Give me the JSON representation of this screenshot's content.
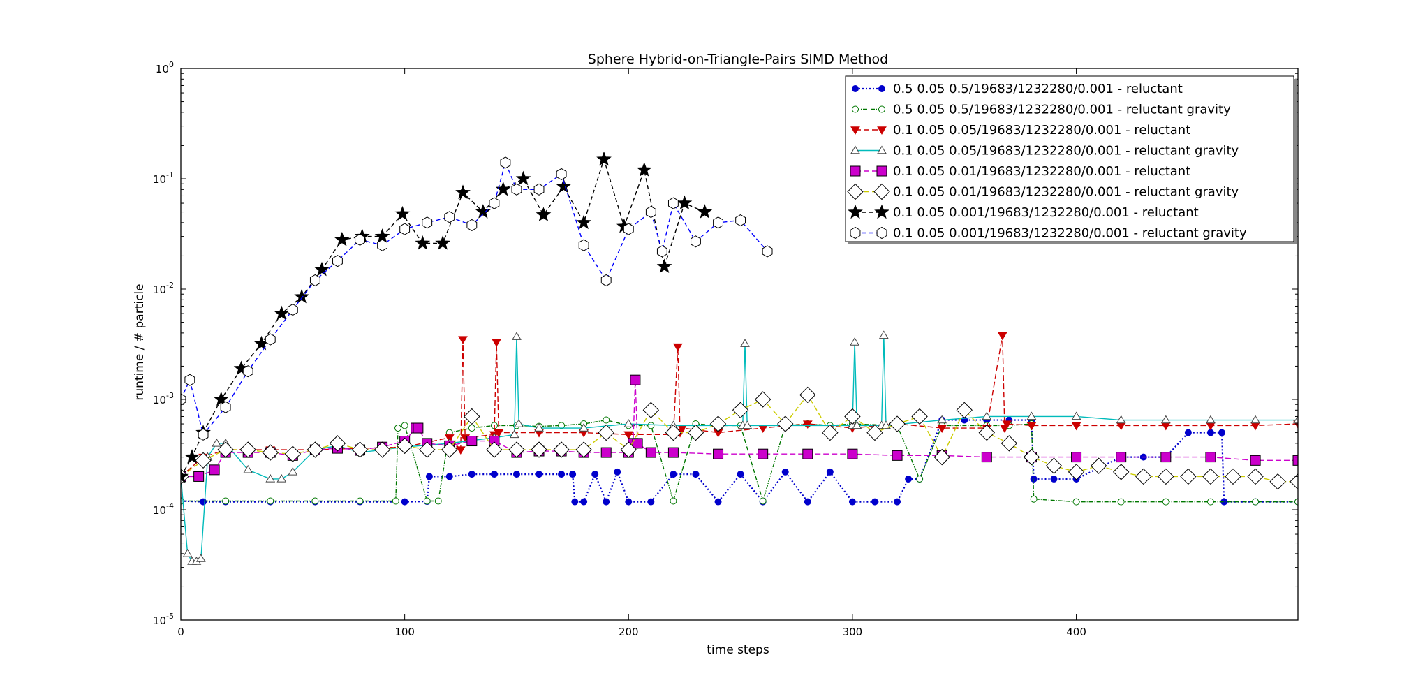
{
  "chart_data": {
    "type": "line",
    "title": "Sphere Hybrid-on-Triangle-Pairs SIMD Method",
    "xlabel": "time steps",
    "ylabel": "runtime / # particle",
    "xlim": [
      0,
      499
    ],
    "ylim": [
      1e-05,
      1
    ],
    "yscale": "log",
    "grid": false,
    "legend_position": "top-right",
    "x_ticks": [
      "0",
      "100",
      "200",
      "300",
      "400"
    ],
    "y_ticks": [
      {
        "base": "10",
        "exp": "0"
      },
      {
        "base": "10",
        "exp": "-1"
      },
      {
        "base": "10",
        "exp": "-2"
      },
      {
        "base": "10",
        "exp": "-3"
      },
      {
        "base": "10",
        "exp": "-4"
      },
      {
        "base": "10",
        "exp": "-5"
      }
    ],
    "series": [
      {
        "name": "0.5 0.05 0.5/19683/1232280/0.001 - reluctant",
        "color": "#0000cc",
        "dash": "2,3",
        "marker": "circle",
        "markerFill": "#0000cc",
        "x": [
          0,
          10,
          20,
          40,
          60,
          80,
          100,
          110,
          111,
          120,
          130,
          140,
          150,
          160,
          170,
          175,
          176,
          180,
          185,
          190,
          195,
          200,
          210,
          220,
          230,
          240,
          250,
          260,
          270,
          280,
          290,
          300,
          310,
          320,
          325,
          330,
          340,
          350,
          360,
          370,
          380,
          381,
          390,
          400,
          420,
          430,
          440,
          450,
          460,
          465,
          466,
          480,
          499
        ],
        "y": [
          0.00012,
          0.000118,
          0.000118,
          0.000118,
          0.000118,
          0.000118,
          0.000118,
          0.000119,
          0.0002,
          0.0002,
          0.00021,
          0.00021,
          0.00021,
          0.00021,
          0.00021,
          0.00021,
          0.000118,
          0.000118,
          0.00021,
          0.000118,
          0.00022,
          0.000118,
          0.000118,
          0.00021,
          0.00021,
          0.000118,
          0.00021,
          0.000118,
          0.00022,
          0.000118,
          0.00022,
          0.000118,
          0.000118,
          0.000118,
          0.00019,
          0.00019,
          0.00065,
          0.00065,
          0.00065,
          0.00065,
          0.00065,
          0.00019,
          0.00019,
          0.00019,
          0.0003,
          0.0003,
          0.0003,
          0.0005,
          0.0005,
          0.0005,
          0.000118,
          0.000118,
          0.000118
        ]
      },
      {
        "name": "0.5 0.05 0.5/19683/1232280/0.001 - reluctant gravity",
        "color": "#007700",
        "dash": "6,2,1,2",
        "marker": "circle",
        "markerFill": "#ffffff",
        "x": [
          0,
          20,
          40,
          60,
          80,
          96,
          97,
          100,
          110,
          115,
          120,
          130,
          140,
          150,
          160,
          170,
          180,
          190,
          200,
          210,
          220,
          230,
          240,
          250,
          260,
          270,
          280,
          290,
          300,
          320,
          330,
          340,
          360,
          370,
          380,
          381,
          400,
          420,
          440,
          460,
          480,
          499
        ],
        "y": [
          0.00012,
          0.00012,
          0.00012,
          0.00012,
          0.00012,
          0.00012,
          0.00055,
          0.00058,
          0.00012,
          0.00012,
          0.0005,
          0.00055,
          0.00058,
          0.00058,
          0.00057,
          0.00058,
          0.0006,
          0.00065,
          0.00058,
          0.00058,
          0.00012,
          0.0006,
          0.00058,
          0.00058,
          0.00012,
          0.00058,
          0.0006,
          0.00058,
          0.0006,
          0.00058,
          0.00019,
          0.00058,
          0.00058,
          0.00058,
          0.0006,
          0.000125,
          0.000118,
          0.000118,
          0.000118,
          0.000118,
          0.000118,
          0.000118
        ]
      },
      {
        "name": "0.1 0.05 0.05/19683/1232280/0.001 - reluctant",
        "color": "#cc0000",
        "dash": "8,4",
        "marker": "triangle-down",
        "markerFill": "#cc0000",
        "x": [
          0,
          10,
          20,
          40,
          60,
          80,
          100,
          120,
          125,
          126,
          127,
          140,
          141,
          142,
          160,
          180,
          200,
          220,
          222,
          223,
          224,
          240,
          260,
          280,
          300,
          320,
          340,
          360,
          367,
          368,
          369,
          380,
          400,
          420,
          440,
          460,
          480,
          499
        ],
        "y": [
          0.0002,
          0.0003,
          0.00035,
          0.00035,
          0.00035,
          0.00036,
          0.00037,
          0.00045,
          0.00035,
          0.0035,
          0.00045,
          0.00048,
          0.0033,
          0.0005,
          0.0005,
          0.0005,
          0.00048,
          0.00048,
          0.003,
          0.0005,
          0.00055,
          0.0005,
          0.00055,
          0.0006,
          0.00055,
          0.0006,
          0.00055,
          0.00055,
          0.0038,
          0.00055,
          0.0006,
          0.00058,
          0.00058,
          0.00058,
          0.00058,
          0.00058,
          0.00058,
          0.0006
        ]
      },
      {
        "name": "0.1 0.05 0.05/19683/1232280/0.001 - reluctant gravity",
        "color": "#00bbbb",
        "dash": "",
        "marker": "triangle-up",
        "markerFill": "#ffffff",
        "x": [
          0,
          3,
          5,
          7,
          9,
          12,
          16,
          20,
          30,
          40,
          45,
          50,
          60,
          70,
          80,
          100,
          120,
          140,
          149,
          150,
          151,
          160,
          180,
          200,
          220,
          240,
          251,
          252,
          253,
          270,
          300,
          301,
          302,
          313,
          314,
          315,
          340,
          360,
          380,
          400,
          420,
          440,
          460,
          480,
          499
        ],
        "y": [
          0.0002,
          4e-05,
          3.4e-05,
          3.4e-05,
          3.6e-05,
          0.0003,
          0.0004,
          0.0004,
          0.00023,
          0.00019,
          0.00019,
          0.00022,
          0.00035,
          0.00038,
          0.00033,
          0.00037,
          0.0004,
          0.00045,
          0.00048,
          0.0037,
          0.0006,
          0.00055,
          0.00055,
          0.0006,
          0.00058,
          0.00058,
          0.00058,
          0.0032,
          0.00058,
          0.00058,
          0.00058,
          0.0033,
          0.00058,
          0.00058,
          0.0038,
          0.00058,
          0.00065,
          0.0007,
          0.0007,
          0.0007,
          0.00065,
          0.00065,
          0.00065,
          0.00065,
          0.00065
        ]
      },
      {
        "name": "0.1 0.05 0.01/19683/1232280/0.001 - reluctant",
        "color": "#cc00cc",
        "dash": "8,4",
        "marker": "square",
        "markerFill": "#cc00cc",
        "x": [
          0,
          8,
          15,
          20,
          30,
          40,
          50,
          60,
          70,
          80,
          90,
          100,
          105,
          106,
          110,
          120,
          130,
          140,
          150,
          160,
          170,
          180,
          190,
          200,
          202,
          203,
          204,
          210,
          220,
          240,
          260,
          280,
          300,
          320,
          340,
          360,
          380,
          400,
          420,
          440,
          460,
          480,
          499
        ],
        "y": [
          0.0002,
          0.0002,
          0.00023,
          0.00033,
          0.00033,
          0.00033,
          0.00031,
          0.00035,
          0.00036,
          0.00035,
          0.00037,
          0.00042,
          0.00055,
          0.00055,
          0.0004,
          0.00038,
          0.00042,
          0.00042,
          0.00033,
          0.00034,
          0.00034,
          0.00033,
          0.00033,
          0.00033,
          0.0004,
          0.0015,
          0.0004,
          0.00033,
          0.00033,
          0.00032,
          0.00032,
          0.00032,
          0.00032,
          0.00031,
          0.00031,
          0.0003,
          0.0003,
          0.0003,
          0.0003,
          0.0003,
          0.0003,
          0.00028,
          0.00028
        ]
      },
      {
        "name": "0.1 0.05 0.01/19683/1232280/0.001 - reluctant gravity",
        "color": "#cccc00",
        "dash": "8,4",
        "marker": "diamond",
        "markerFill": "#ffffff",
        "x": [
          0,
          10,
          20,
          30,
          40,
          50,
          60,
          70,
          80,
          90,
          100,
          110,
          120,
          130,
          140,
          150,
          160,
          170,
          180,
          190,
          200,
          210,
          220,
          230,
          240,
          250,
          260,
          270,
          280,
          290,
          300,
          310,
          320,
          330,
          340,
          350,
          360,
          370,
          380,
          390,
          400,
          410,
          420,
          430,
          440,
          450,
          460,
          470,
          480,
          490,
          499
        ],
        "y": [
          0.0002,
          0.00028,
          0.00035,
          0.00035,
          0.00033,
          0.00032,
          0.00035,
          0.0004,
          0.00035,
          0.00035,
          0.00038,
          0.00035,
          0.00035,
          0.0007,
          0.00035,
          0.00035,
          0.00035,
          0.00035,
          0.00035,
          0.0005,
          0.00035,
          0.0008,
          0.0005,
          0.0005,
          0.0006,
          0.0008,
          0.001,
          0.0006,
          0.0011,
          0.0005,
          0.0007,
          0.0005,
          0.0006,
          0.0007,
          0.0003,
          0.0008,
          0.0005,
          0.0004,
          0.0003,
          0.00025,
          0.00022,
          0.00025,
          0.00022,
          0.0002,
          0.0002,
          0.0002,
          0.0002,
          0.0002,
          0.0002,
          0.00018,
          0.00018
        ]
      },
      {
        "name": "0.1 0.05 0.001/19683/1232280/0.001 - reluctant",
        "color": "#000000",
        "dash": "6,4",
        "marker": "star",
        "markerFill": "#000000",
        "x": [
          0,
          5,
          10,
          18,
          27,
          36,
          45,
          54,
          63,
          72,
          81,
          90,
          99,
          108,
          117,
          126,
          135,
          144,
          153,
          162,
          171,
          180,
          189,
          198,
          207,
          216,
          225,
          234
        ],
        "y": [
          0.0002,
          0.0003,
          0.0005,
          0.001,
          0.0019,
          0.0032,
          0.006,
          0.0085,
          0.015,
          0.028,
          0.03,
          0.03,
          0.048,
          0.026,
          0.026,
          0.075,
          0.05,
          0.08,
          0.1,
          0.047,
          0.085,
          0.04,
          0.15,
          0.037,
          0.12,
          0.016,
          0.06,
          0.05
        ]
      },
      {
        "name": "0.1 0.05 0.001/19683/1232280/0.001 - reluctant gravity",
        "color": "#0000ff",
        "dash": "6,4",
        "marker": "hexagon",
        "markerFill": "#ffffff",
        "x": [
          0,
          4,
          10,
          20,
          30,
          40,
          50,
          60,
          70,
          80,
          90,
          100,
          110,
          120,
          130,
          140,
          145,
          150,
          160,
          170,
          180,
          190,
          200,
          210,
          215,
          220,
          230,
          240,
          250,
          262
        ],
        "y": [
          0.001,
          0.0015,
          0.00048,
          0.00085,
          0.0018,
          0.0035,
          0.0065,
          0.012,
          0.018,
          0.028,
          0.025,
          0.035,
          0.04,
          0.045,
          0.038,
          0.06,
          0.14,
          0.08,
          0.08,
          0.11,
          0.025,
          0.012,
          0.035,
          0.05,
          0.022,
          0.06,
          0.027,
          0.04,
          0.042,
          0.022
        ]
      }
    ]
  }
}
